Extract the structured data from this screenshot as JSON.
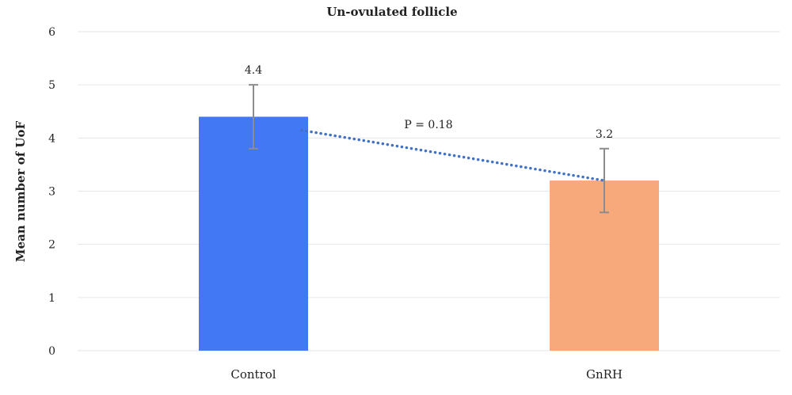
{
  "chart_data": {
    "type": "bar",
    "title": "Un-ovulated follicle",
    "xlabel": "",
    "ylabel": "Mean number of UoF",
    "categories": [
      "Control",
      "GnRH"
    ],
    "values": [
      4.4,
      3.2
    ],
    "data_labels": [
      "4.4",
      "3.2"
    ],
    "error_bars": [
      {
        "low": 3.8,
        "high": 5.0
      },
      {
        "low": 2.6,
        "high": 3.8
      }
    ],
    "colors": [
      "#4378f5",
      "#f7a97c"
    ],
    "error_bar_color": "#8c8c8c",
    "ylim": [
      0,
      6
    ],
    "yticks": [
      0,
      1,
      2,
      3,
      4,
      5,
      6
    ],
    "grid": true,
    "legend": "none",
    "trendline": {
      "style": "dotted",
      "color": "#4472c4",
      "from_category": "Control",
      "to_category": "GnRH"
    },
    "annotations": [
      {
        "text": "P = 0.18"
      }
    ]
  }
}
